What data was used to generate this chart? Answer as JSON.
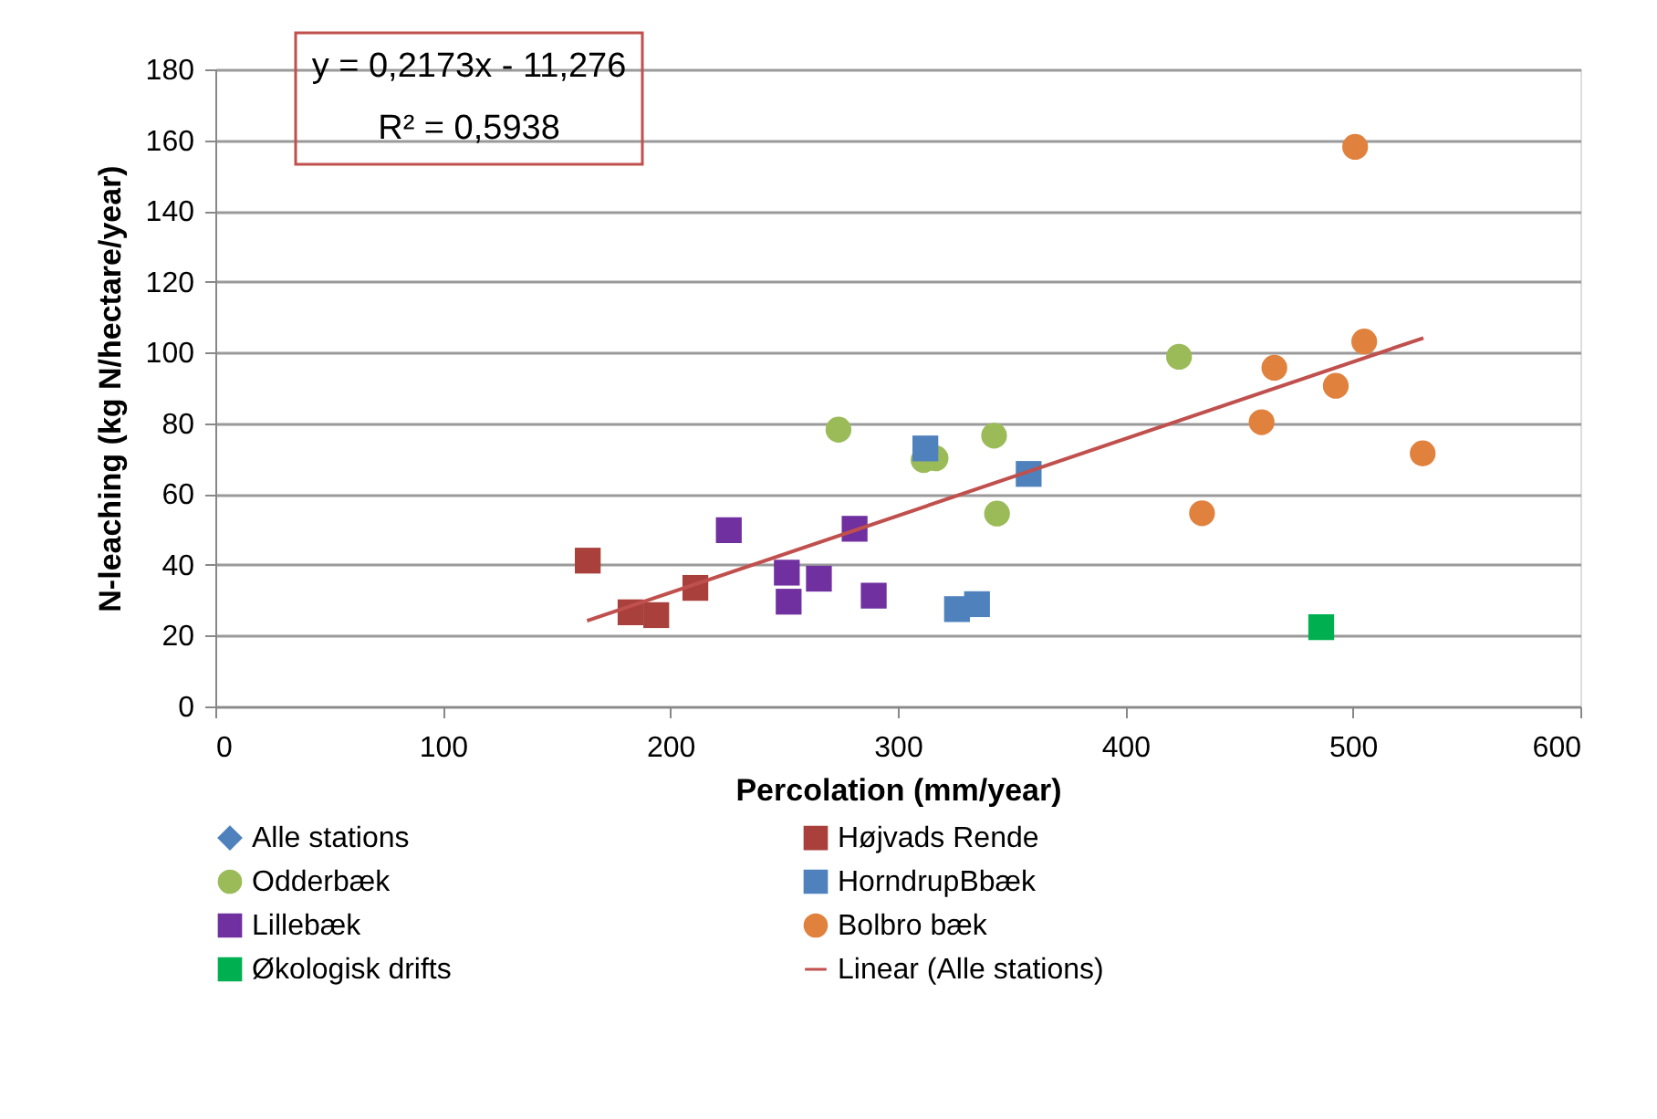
{
  "chart_data": {
    "type": "scatter",
    "xlabel": "Percolation (mm/year)",
    "ylabel": "N-leaching (kg N/hectare/year)",
    "xlim": [
      0,
      600
    ],
    "xticks": [
      0,
      100,
      200,
      300,
      400,
      500,
      600
    ],
    "ylim": [
      0,
      180
    ],
    "yticks": [
      0,
      20,
      40,
      60,
      80,
      100,
      120,
      140,
      160,
      180
    ],
    "grid": "y",
    "legend": "bottom",
    "annotations": [
      "y = 0,2173x - 11,276",
      "R² = 0,5938"
    ],
    "series": [
      {
        "name": "Alle stations",
        "color": "#4f81bd",
        "marker": "diamond"
      },
      {
        "name": "Højvads Rende",
        "color": "#a9403c",
        "marker": "square",
        "x": [
          163.7,
          182.5,
          193.8,
          211
        ],
        "values": [
          41.2,
          26.6,
          25.8,
          33.5
        ]
      },
      {
        "name": "Odderbæk",
        "color": "#9bbb59",
        "marker": "circle",
        "x": [
          273.9,
          311.3,
          316.6,
          342.3,
          343.6,
          423.6
        ],
        "values": [
          78.2,
          69.6,
          70.1,
          76.5,
          54.5,
          98.8
        ]
      },
      {
        "name": "HorndrupBbæk",
        "color": "#4f81bd",
        "marker": "square",
        "x": [
          312.1,
          357.5,
          326,
          334.8
        ],
        "values": [
          72.9,
          65.7,
          27.5,
          28.9
        ]
      },
      {
        "name": "Lillebæk",
        "color": "#7030a0",
        "marker": "square",
        "x": [
          225.7,
          251.2,
          252,
          265.3,
          281,
          289.4
        ],
        "values": [
          49.8,
          37.8,
          29.6,
          36.1,
          50.2,
          31.3
        ]
      },
      {
        "name": "Bolbro bæk",
        "color": "#e0823d",
        "marker": "circle",
        "x": [
          501,
          505,
          465.5,
          492.5,
          459.9,
          530.7,
          433.7
        ],
        "values": [
          158.1,
          103.1,
          95.7,
          90.6,
          80.3,
          71.5,
          54.6
        ]
      },
      {
        "name": "Økologisk drifts",
        "color": "#00b050",
        "marker": "square",
        "x": [
          486.1
        ],
        "values": [
          22.4
        ]
      },
      {
        "name": "Linear (Alle stations)",
        "color": "#c0504d",
        "type": "line",
        "marker": "none",
        "line_style": "solid",
        "x": [
          163.4,
          531
        ],
        "values": [
          24.2,
          104.1
        ]
      }
    ]
  }
}
